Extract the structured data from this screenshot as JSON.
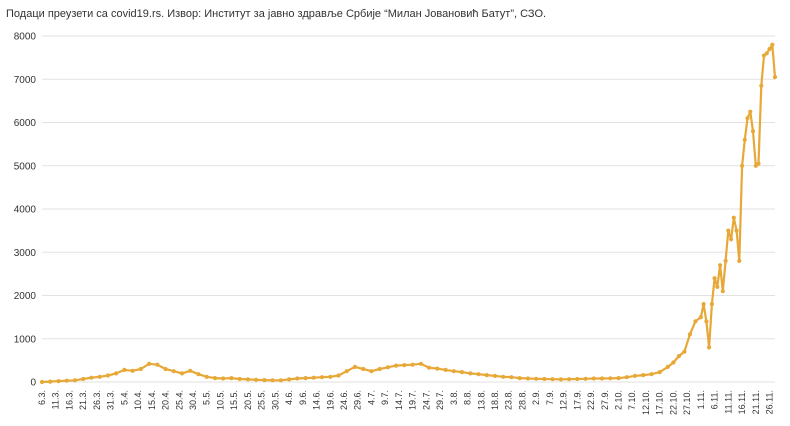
{
  "source_note": "Подаци преузети са covid19.rs. Извор: Институт за јавно здравље Србије “Милан Јовановић Батут”, СЗО.",
  "colors": {
    "line": "#e8a838",
    "grid": "#e2e2e2",
    "text": "#333333"
  },
  "chart_data": {
    "type": "line",
    "grid": true,
    "ylim": [
      0,
      8000
    ],
    "yticks": [
      0,
      1000,
      2000,
      3000,
      4000,
      5000,
      6000,
      7000,
      8000
    ],
    "x_tick_labels": [
      "6.3.",
      "11.3.",
      "16.3.",
      "21.3.",
      "26.3.",
      "31.3.",
      "5.4.",
      "10.4.",
      "15.4.",
      "20.4.",
      "25.4.",
      "30.4.",
      "5.5.",
      "10.5.",
      "15.5.",
      "20.5.",
      "25.5.",
      "30.5.",
      "4.6.",
      "9.6.",
      "14.6.",
      "19.6.",
      "24.6.",
      "29.6.",
      "4.7.",
      "9.7.",
      "14.7.",
      "19.7.",
      "24.7.",
      "29.7.",
      "3.8.",
      "8.8.",
      "13.8.",
      "18.8.",
      "23.8.",
      "28.8.",
      "2.9.",
      "7.9.",
      "12.9.",
      "17.9.",
      "22.9.",
      "27.9.",
      "2.10.",
      "7.10.",
      "12.10.",
      "17.10.",
      "22.10.",
      "27.10.",
      "1.11.",
      "6.11.",
      "11.11.",
      "16.11.",
      "21.11.",
      "26.11."
    ],
    "x_start": "2020-03-06",
    "x_end": "2020-11-28",
    "x": [
      "2020-03-06",
      "2020-03-09",
      "2020-03-12",
      "2020-03-15",
      "2020-03-18",
      "2020-03-21",
      "2020-03-24",
      "2020-03-27",
      "2020-03-30",
      "2020-04-02",
      "2020-04-05",
      "2020-04-08",
      "2020-04-11",
      "2020-04-14",
      "2020-04-17",
      "2020-04-20",
      "2020-04-23",
      "2020-04-26",
      "2020-04-29",
      "2020-05-02",
      "2020-05-05",
      "2020-05-08",
      "2020-05-11",
      "2020-05-14",
      "2020-05-17",
      "2020-05-20",
      "2020-05-23",
      "2020-05-26",
      "2020-05-29",
      "2020-06-01",
      "2020-06-04",
      "2020-06-07",
      "2020-06-10",
      "2020-06-13",
      "2020-06-16",
      "2020-06-19",
      "2020-06-22",
      "2020-06-25",
      "2020-06-28",
      "2020-07-01",
      "2020-07-04",
      "2020-07-07",
      "2020-07-10",
      "2020-07-13",
      "2020-07-16",
      "2020-07-19",
      "2020-07-22",
      "2020-07-25",
      "2020-07-28",
      "2020-07-31",
      "2020-08-03",
      "2020-08-06",
      "2020-08-09",
      "2020-08-12",
      "2020-08-15",
      "2020-08-18",
      "2020-08-21",
      "2020-08-24",
      "2020-08-27",
      "2020-08-30",
      "2020-09-02",
      "2020-09-05",
      "2020-09-08",
      "2020-09-11",
      "2020-09-14",
      "2020-09-17",
      "2020-09-20",
      "2020-09-23",
      "2020-09-26",
      "2020-09-29",
      "2020-10-02",
      "2020-10-05",
      "2020-10-08",
      "2020-10-11",
      "2020-10-14",
      "2020-10-17",
      "2020-10-20",
      "2020-10-22",
      "2020-10-24",
      "2020-10-26",
      "2020-10-28",
      "2020-10-30",
      "2020-11-01",
      "2020-11-02",
      "2020-11-03",
      "2020-11-04",
      "2020-11-05",
      "2020-11-06",
      "2020-11-07",
      "2020-11-08",
      "2020-11-09",
      "2020-11-10",
      "2020-11-11",
      "2020-11-12",
      "2020-11-13",
      "2020-11-14",
      "2020-11-15",
      "2020-11-16",
      "2020-11-17",
      "2020-11-18",
      "2020-11-19",
      "2020-11-20",
      "2020-11-21",
      "2020-11-22",
      "2020-11-23",
      "2020-11-24",
      "2020-11-25",
      "2020-11-26",
      "2020-11-27",
      "2020-11-28"
    ],
    "series": [
      {
        "values": [
          1,
          10,
          20,
          30,
          40,
          70,
          100,
          120,
          150,
          200,
          280,
          260,
          300,
          420,
          400,
          300,
          250,
          200,
          260,
          180,
          120,
          90,
          80,
          90,
          70,
          60,
          50,
          45,
          40,
          40,
          60,
          80,
          90,
          100,
          110,
          120,
          150,
          250,
          350,
          300,
          250,
          300,
          340,
          380,
          390,
          400,
          420,
          330,
          310,
          280,
          250,
          230,
          200,
          180,
          160,
          140,
          120,
          110,
          90,
          80,
          75,
          70,
          65,
          60,
          65,
          70,
          75,
          80,
          80,
          85,
          90,
          110,
          140,
          160,
          180,
          230,
          350,
          450,
          600,
          700,
          1100,
          1400,
          1500,
          1800,
          1400,
          800,
          1800,
          2400,
          2200,
          2700,
          2100,
          2800,
          3500,
          3300,
          3800,
          3500,
          2800,
          5000,
          5600,
          6100,
          6250,
          5800,
          5000,
          5050,
          6850,
          7550,
          7600,
          7700,
          7800,
          7050
        ]
      }
    ]
  }
}
